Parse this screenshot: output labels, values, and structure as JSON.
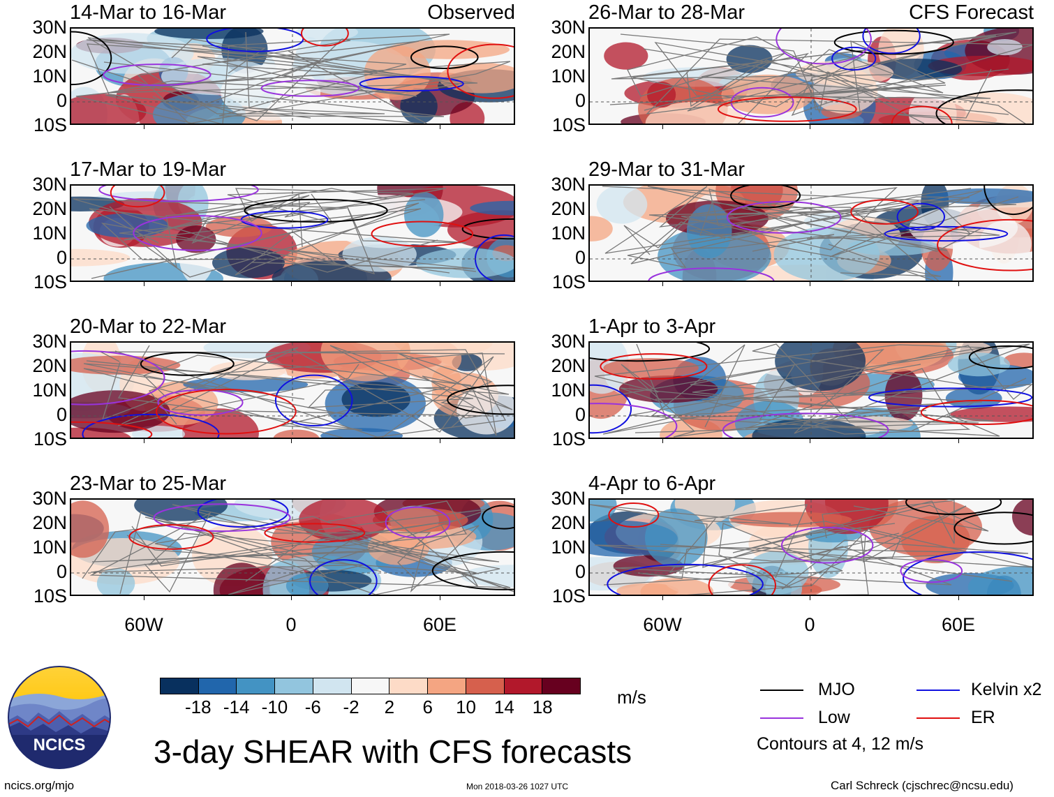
{
  "chart_data": {
    "type": "heatmap",
    "title": "3-day SHEAR with CFS forecasts",
    "variable": "SHEAR",
    "units": "m/s",
    "lat_ticks": [
      "30N",
      "20N",
      "10N",
      "0",
      "10S"
    ],
    "lon_ticks": [
      "60W",
      "0",
      "60E"
    ],
    "colorbar": {
      "labels": [
        "-18",
        "-14",
        "-10",
        "-6",
        "-2",
        "2",
        "6",
        "10",
        "14",
        "18"
      ],
      "colors": [
        "#08305e",
        "#2166ac",
        "#4393c3",
        "#92c5de",
        "#d1e5f0",
        "#f7f7f7",
        "#fddbc7",
        "#f4a582",
        "#d6604d",
        "#b2182b",
        "#67001f"
      ]
    },
    "panels": [
      {
        "period": "14-Mar to 16-Mar",
        "type": "Observed",
        "label": "Observed"
      },
      {
        "period": "17-Mar to 19-Mar",
        "type": "Observed",
        "label": ""
      },
      {
        "period": "20-Mar to 22-Mar",
        "type": "Observed",
        "label": ""
      },
      {
        "period": "23-Mar to 25-Mar",
        "type": "Observed",
        "label": ""
      },
      {
        "period": "26-Mar to 28-Mar",
        "type": "CFS Forecast",
        "label": "CFS Forecast"
      },
      {
        "period": "29-Mar to 31-Mar",
        "type": "CFS Forecast",
        "label": ""
      },
      {
        "period": "1-Apr to 3-Apr",
        "type": "CFS Forecast",
        "label": ""
      },
      {
        "period": "4-Apr to 6-Apr",
        "type": "CFS Forecast",
        "label": ""
      }
    ],
    "contour_legend": [
      {
        "name": "MJO",
        "color": "#000000"
      },
      {
        "name": "Kelvin x2",
        "color": "#1010e0"
      },
      {
        "name": "Low",
        "color": "#9933dd"
      },
      {
        "name": "ER",
        "color": "#e01010"
      }
    ],
    "contour_note": "Contours at 4, 12 m/s"
  },
  "logo": {
    "text": "NCICS"
  },
  "footer": {
    "website": "ncics.org/mjo",
    "timestamp": "Mon 2018-03-26 1027 UTC",
    "author": "Carl Schreck (cjschrec@ncsu.edu)"
  }
}
